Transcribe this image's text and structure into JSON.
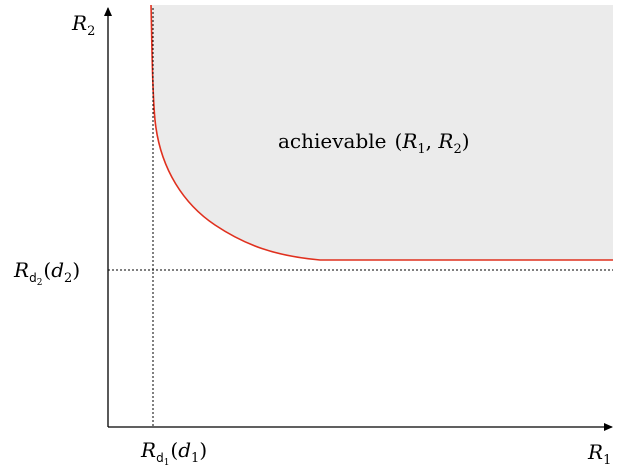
{
  "diagram": {
    "region_label": "achievable",
    "region_pair": {
      "open": "(",
      "a_letter": "R",
      "a_sub": "1",
      "comma": ", ",
      "b_letter": "R",
      "b_sub": "2",
      "close": ")"
    },
    "y_axis": {
      "letter": "R",
      "sub": "2"
    },
    "x_axis": {
      "letter": "R",
      "sub": "1"
    },
    "y_threshold": {
      "letter": "R",
      "sub": "d",
      "subsub": "2",
      "open": "(",
      "arg": "d",
      "arg_sub": "2",
      "close": ")"
    },
    "x_threshold": {
      "letter": "R",
      "sub": "d",
      "subsub": "1",
      "open": "(",
      "arg": "d",
      "arg_sub": "1",
      "close": ")"
    },
    "colors": {
      "region_fill": "#ebebeb",
      "boundary_curve": "#e0301e",
      "axes": "#000000",
      "guides": "#000000"
    }
  }
}
